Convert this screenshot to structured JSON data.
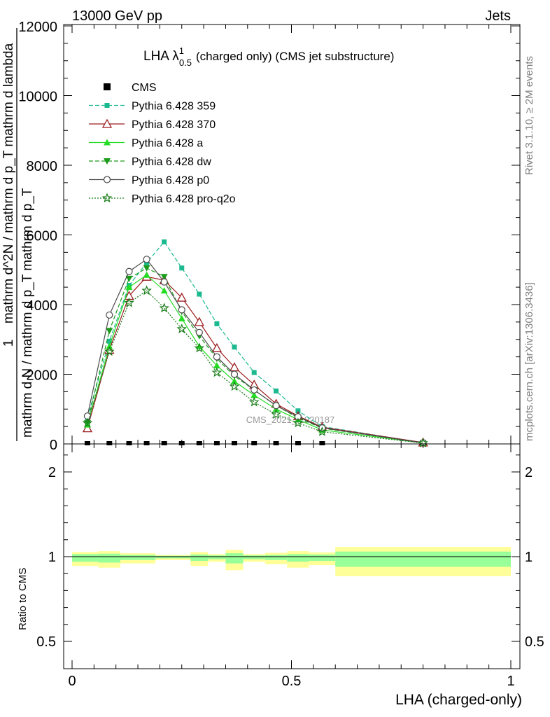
{
  "header": {
    "left": "13000 GeV pp",
    "right": "Jets"
  },
  "side_text": {
    "rivet": "Rivet 3.1.10, ≥ 2M events",
    "mcplots": "mcplots.cern.ch [arXiv:1306.3436]"
  },
  "watermark": "CMS_2021_I1920187",
  "ylabel_main": {
    "numerator": "1",
    "denominator": "mathrm d N / mathrm d p_T mathrm d p_T",
    "fraction": "mathrm d^2N / mathrm d p_T mathrm d lambda"
  },
  "ratio_ylabel": "Ratio to CMS",
  "xlabel": "LHA (charged-only)",
  "chart_data": [
    {
      "type": "line",
      "title": "LHA λ¹₀.₅ (charged only) (CMS jet substructure)",
      "title_main": "LHA λ",
      "title_sup": "1",
      "title_sub": "0.5",
      "title_rest": "(charged only) (CMS jet substructure)",
      "xlim": [
        -0.08,
        1.06
      ],
      "ylim": [
        0,
        12000
      ],
      "xticks": [
        0,
        0.5,
        1
      ],
      "yticks": [
        0,
        2000,
        4000,
        6000,
        8000,
        10000,
        12000
      ],
      "ytick_labels": [
        "0",
        "2000",
        "4000",
        "6000",
        "8000",
        "10000",
        "12000"
      ],
      "x": [
        0.035,
        0.085,
        0.13,
        0.17,
        0.21,
        0.25,
        0.29,
        0.33,
        0.37,
        0.415,
        0.465,
        0.515,
        0.57,
        0.8
      ],
      "series": [
        {
          "name": "CMS",
          "kind": "data",
          "color": "#000000",
          "values": [
            0,
            0,
            0,
            0,
            0,
            0,
            0,
            0,
            0,
            0,
            0,
            0,
            0,
            0
          ]
        },
        {
          "name": "Pythia 6.428 359",
          "color": "#1ab98f",
          "marker": "square",
          "dash": "6,3",
          "values": [
            750,
            2950,
            4550,
            5200,
            5800,
            5050,
            4300,
            3450,
            2780,
            2050,
            1520,
            950,
            500,
            30
          ]
        },
        {
          "name": "Pythia 6.428 370",
          "color": "#9b1d20",
          "marker": "triangle-open",
          "dash": "",
          "values": [
            450,
            2700,
            4250,
            4800,
            4700,
            4200,
            3500,
            2750,
            2200,
            1700,
            1150,
            800,
            480,
            40
          ]
        },
        {
          "name": "Pythia 6.428 a",
          "color": "#22dd22",
          "marker": "triangle",
          "dash": "",
          "values": [
            550,
            2800,
            4500,
            4850,
            4400,
            3600,
            2800,
            2250,
            1800,
            1400,
            1000,
            700,
            400,
            30
          ]
        },
        {
          "name": "Pythia 6.428 dw",
          "color": "#1a9b1a",
          "marker": "triangle-down",
          "dash": "6,3",
          "values": [
            600,
            3250,
            4750,
            5050,
            4800,
            3800,
            3100,
            2450,
            1950,
            1550,
            1100,
            750,
            450,
            30
          ]
        },
        {
          "name": "Pythia 6.428 p0",
          "color": "#4a4a4a",
          "marker": "circle-open",
          "dash": "",
          "values": [
            800,
            3700,
            4950,
            5300,
            4650,
            3850,
            3200,
            2500,
            2000,
            1550,
            1100,
            780,
            460,
            30
          ]
        },
        {
          "name": "Pythia 6.428 pro-q2o",
          "color": "#1a7d1a",
          "marker": "star",
          "dash": "2,2",
          "values": [
            600,
            2650,
            4050,
            4400,
            3900,
            3300,
            2750,
            2050,
            1650,
            1200,
            850,
            600,
            350,
            25
          ]
        }
      ]
    },
    {
      "type": "area",
      "title": "Ratio to CMS",
      "xlim": [
        -0.08,
        1.06
      ],
      "ylim": [
        0.35,
        2.3
      ],
      "xticks": [
        0,
        0.5,
        1
      ],
      "xtick_labels": [
        "0",
        "0.5",
        "1"
      ],
      "yticks": [
        0.5,
        1,
        2
      ],
      "ytick_labels": [
        "0.5",
        "1",
        "2"
      ],
      "bins": [
        {
          "x0": 0.0,
          "x1": 0.06,
          "inner": [
            0.97,
            1.03
          ],
          "outer": [
            0.945,
            1.055
          ]
        },
        {
          "x0": 0.06,
          "x1": 0.11,
          "inner": [
            0.965,
            1.035
          ],
          "outer": [
            0.935,
            1.065
          ]
        },
        {
          "x0": 0.11,
          "x1": 0.15,
          "inner": [
            0.98,
            1.02
          ],
          "outer": [
            0.96,
            1.04
          ]
        },
        {
          "x0": 0.15,
          "x1": 0.19,
          "inner": [
            0.98,
            1.02
          ],
          "outer": [
            0.96,
            1.04
          ]
        },
        {
          "x0": 0.19,
          "x1": 0.23,
          "inner": [
            0.99,
            1.01
          ],
          "outer": [
            0.98,
            1.02
          ]
        },
        {
          "x0": 0.23,
          "x1": 0.27,
          "inner": [
            0.99,
            1.01
          ],
          "outer": [
            0.98,
            1.02
          ]
        },
        {
          "x0": 0.27,
          "x1": 0.31,
          "inner": [
            0.975,
            1.025
          ],
          "outer": [
            0.945,
            1.055
          ]
        },
        {
          "x0": 0.31,
          "x1": 0.35,
          "inner": [
            0.985,
            1.015
          ],
          "outer": [
            0.97,
            1.03
          ]
        },
        {
          "x0": 0.35,
          "x1": 0.39,
          "inner": [
            0.96,
            1.04
          ],
          "outer": [
            0.92,
            1.08
          ]
        },
        {
          "x0": 0.39,
          "x1": 0.44,
          "inner": [
            0.985,
            1.015
          ],
          "outer": [
            0.97,
            1.03
          ]
        },
        {
          "x0": 0.44,
          "x1": 0.49,
          "inner": [
            0.98,
            1.02
          ],
          "outer": [
            0.955,
            1.045
          ]
        },
        {
          "x0": 0.49,
          "x1": 0.54,
          "inner": [
            0.97,
            1.03
          ],
          "outer": [
            0.935,
            1.065
          ]
        },
        {
          "x0": 0.54,
          "x1": 0.6,
          "inner": [
            0.975,
            1.025
          ],
          "outer": [
            0.95,
            1.05
          ]
        },
        {
          "x0": 0.6,
          "x1": 1.0,
          "inner": [
            0.94,
            1.06
          ],
          "outer": [
            0.885,
            1.115
          ]
        }
      ],
      "inner_color": "#99ff99",
      "outer_color": "#ffff99"
    }
  ]
}
